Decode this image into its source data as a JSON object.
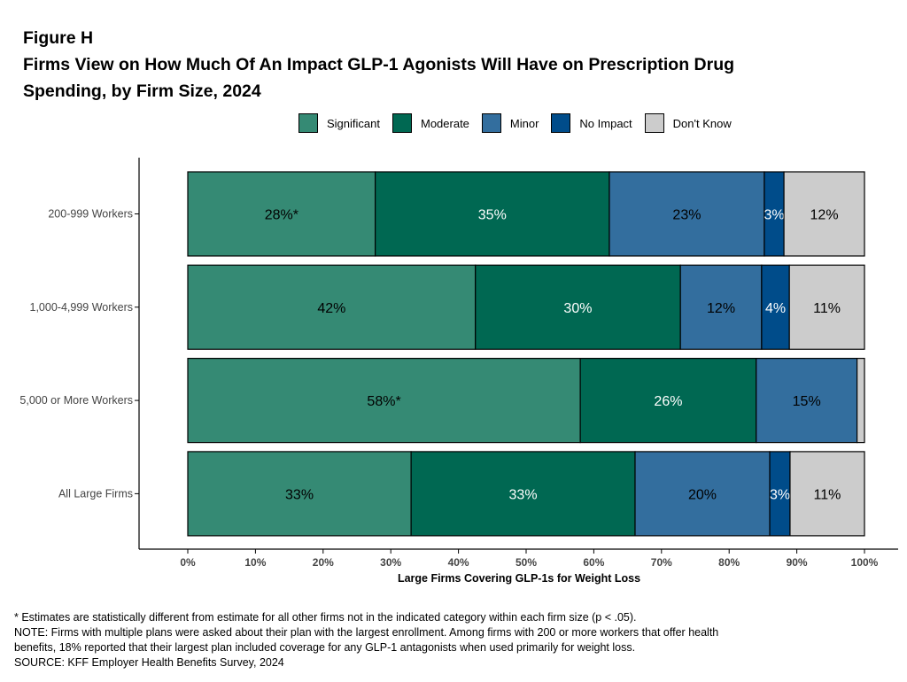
{
  "figure_label": "Figure H",
  "title_line1": "Firms View on How Much Of An Impact GLP-1 Agonists Will Have on Prescription Drug",
  "title_line2": "Spending, by Firm Size, 2024",
  "notes": [
    "* Estimates are statistically different from estimate for all other firms not in the indicated category within each firm size (p < .05).",
    "NOTE: Firms with multiple plans were asked about their plan with the largest enrollment.  Among firms with 200 or more workers that offer health",
    "benefits, 18% reported that their largest plan included coverage for any GLP-1 antagonists when used primarily for weight loss.",
    "SOURCE: KFF Employer Health Benefits Survey, 2024"
  ],
  "chart_data": {
    "type": "bar",
    "orientation": "horizontal",
    "stacked": true,
    "xlabel": "Large Firms Covering GLP-1s for Weight Loss",
    "ylabel": "",
    "xlim": [
      0,
      100
    ],
    "xticks": [
      "0%",
      "10%",
      "20%",
      "30%",
      "40%",
      "50%",
      "60%",
      "70%",
      "80%",
      "90%",
      "100%"
    ],
    "legend_position": "top",
    "grid": false,
    "categories": [
      "200-999 Workers",
      "1,000-4,999 Workers",
      "5,000 or More Workers",
      "All Large Firms"
    ],
    "series": [
      {
        "name": "Significant",
        "color": "#358a74",
        "label_color": "#000000",
        "values": [
          27.7,
          42.5,
          58.0,
          33.0
        ],
        "labels": [
          "28%*",
          "42%",
          "58%*",
          "33%"
        ]
      },
      {
        "name": "Moderate",
        "color": "#006852",
        "label_color": "#ffffff",
        "values": [
          34.6,
          30.3,
          26.0,
          33.1
        ],
        "labels": [
          "35%",
          "30%",
          "26%",
          "33%"
        ]
      },
      {
        "name": "Minor",
        "color": "#336e9e",
        "label_color": "#000000",
        "values": [
          22.9,
          12.0,
          14.9,
          19.9
        ],
        "labels": [
          "23%",
          "12%",
          "15%",
          "20%"
        ]
      },
      {
        "name": "No Impact",
        "color": "#004c8a",
        "label_color": "#ffffff",
        "values": [
          2.9,
          4.1,
          0,
          3.0
        ],
        "labels": [
          "3%",
          "4%",
          "",
          "3%"
        ]
      },
      {
        "name": "Don't Know",
        "color": "#cccccc",
        "label_color": "#000000",
        "values": [
          11.9,
          11.1,
          1.1,
          11.0
        ],
        "labels": [
          "12%",
          "11%",
          "",
          "11%"
        ]
      }
    ]
  }
}
